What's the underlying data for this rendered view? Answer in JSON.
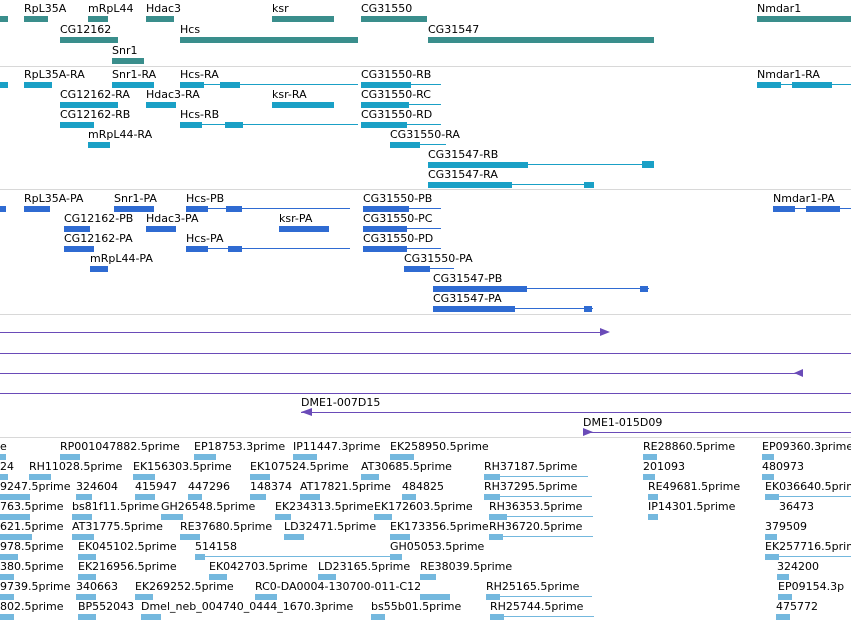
{
  "colors": {
    "gene": "#3a8e8c",
    "transcript": "#1aa0c6",
    "protein": "#2f6bd2",
    "clone": "#6a4bb8",
    "est": "#74b8de"
  },
  "track1": {
    "labels": [
      "RpL35A",
      "mRpL44",
      "Hdac3",
      "ksr",
      "CG31550",
      "Nmdar1",
      "CG12162",
      "Hcs",
      "CG31547",
      "Snr1"
    ]
  },
  "track2": {
    "labels": [
      "RpL35A-RA",
      "Snr1-RA",
      "Hcs-RA",
      "CG31550-RB",
      "Nmdar1-RA",
      "CG12162-RA",
      "Hdac3-RA",
      "ksr-RA",
      "CG31550-RC",
      "CG12162-RB",
      "Hcs-RB",
      "CG31550-RD",
      "mRpL44-RA",
      "CG31550-RA",
      "CG31547-RB",
      "CG31547-RA"
    ]
  },
  "track3": {
    "labels": [
      "RpL35A-PA",
      "Snr1-PA",
      "Hcs-PB",
      "CG31550-PB",
      "Nmdar1-PA",
      "CG12162-PB",
      "Hdac3-PA",
      "ksr-PA",
      "CG31550-PC",
      "CG12162-PA",
      "Hcs-PA",
      "CG31550-PD",
      "mRpL44-PA",
      "CG31550-PA",
      "CG31547-PB",
      "CG31547-PA"
    ]
  },
  "track4": {
    "labels": [
      "DME1-007D15",
      "DME1-015D09"
    ]
  },
  "track5": {
    "labels": [
      "RP001047882.5prime",
      "EP18753.3prime",
      "IP11447.3prime",
      "EK258950.5prime",
      "RE28860.5prime",
      "EP09360.3prime",
      "24",
      "RH11028.5prime",
      "EK156303.5prime",
      "EK107524.5prime",
      "AT30685.5prime",
      "RH37187.5prime",
      "201093",
      "480973",
      "9247.5prime",
      "324604",
      "415947",
      "447296",
      "148374",
      "AT17821.5prime",
      "484825",
      "RH37295.5prime",
      "RE49681.5prime",
      "EK036640.5prime",
      "763.5prime",
      "bs81f11.5prime",
      "GH26548.5prime",
      "EK234313.5prime",
      "EK172603.5prime",
      "RH36353.5prime",
      "IP14301.5prime",
      "36473",
      "621.5prime",
      "AT31775.5prime",
      "RE37680.5prime",
      "LD32471.5prime",
      "EK173356.5prime",
      "RH36720.5prime",
      "379509",
      "978.5prime",
      "EK045102.5prime",
      "514158",
      "GH05053.5prime",
      "EK257716.5prime",
      "380.5prime",
      "EK216956.5prime",
      "EK042703.5prime",
      "LD23165.5prime",
      "RE38039.5prime",
      "324200",
      "9739.5prime",
      "340663",
      "EK269252.5prime",
      "RC0-DA0004-130700-011-C12",
      "RH25165.5prime",
      "EP09154.3p",
      "802.5prime",
      "BP552043",
      "Dmel_neb_004740_0444_1670.3prime",
      "bs55b01.5prime",
      "RH25744.5prime",
      "475772"
    ]
  }
}
